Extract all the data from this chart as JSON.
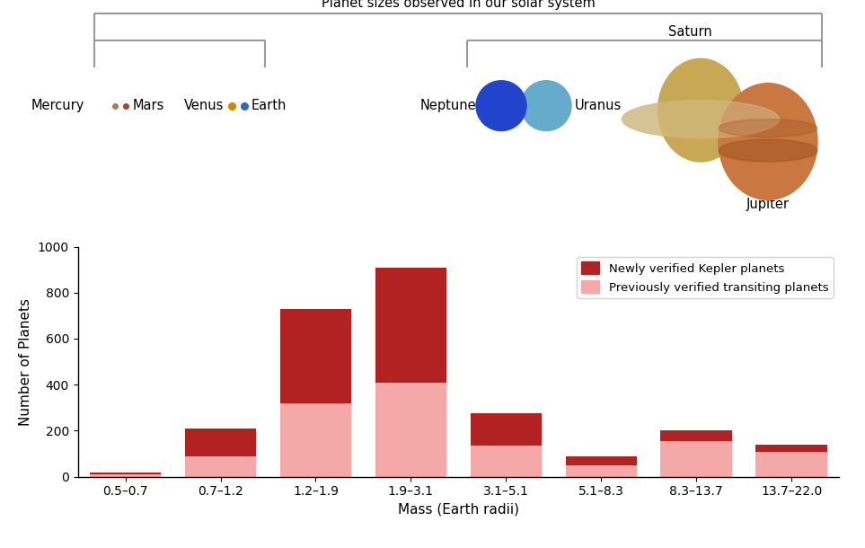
{
  "categories": [
    "0.5–0.7",
    "0.7–1.2",
    "1.2–1.9",
    "1.9–3.1",
    "3.1–5.1",
    "5.1–8.3",
    "8.3–13.7",
    "13.7–22.0"
  ],
  "previously_verified": [
    10,
    90,
    320,
    410,
    135,
    50,
    155,
    110
  ],
  "newly_verified": [
    8,
    120,
    410,
    500,
    140,
    40,
    45,
    30
  ],
  "color_previously": "#f4a9a8",
  "color_newly": "#b22222",
  "ylabel": "Number of Planets",
  "xlabel": "Mass (Earth radii)",
  "ylim": [
    0,
    1000
  ],
  "yticks": [
    0,
    200,
    400,
    600,
    800,
    1000
  ],
  "legend_newly": "Newly verified Kepler planets",
  "legend_previously": "Previously verified transiting planets",
  "title_bracket": "Planet sizes observed in our solar system",
  "bracket_color": "#999999",
  "background_color": "#ffffff"
}
